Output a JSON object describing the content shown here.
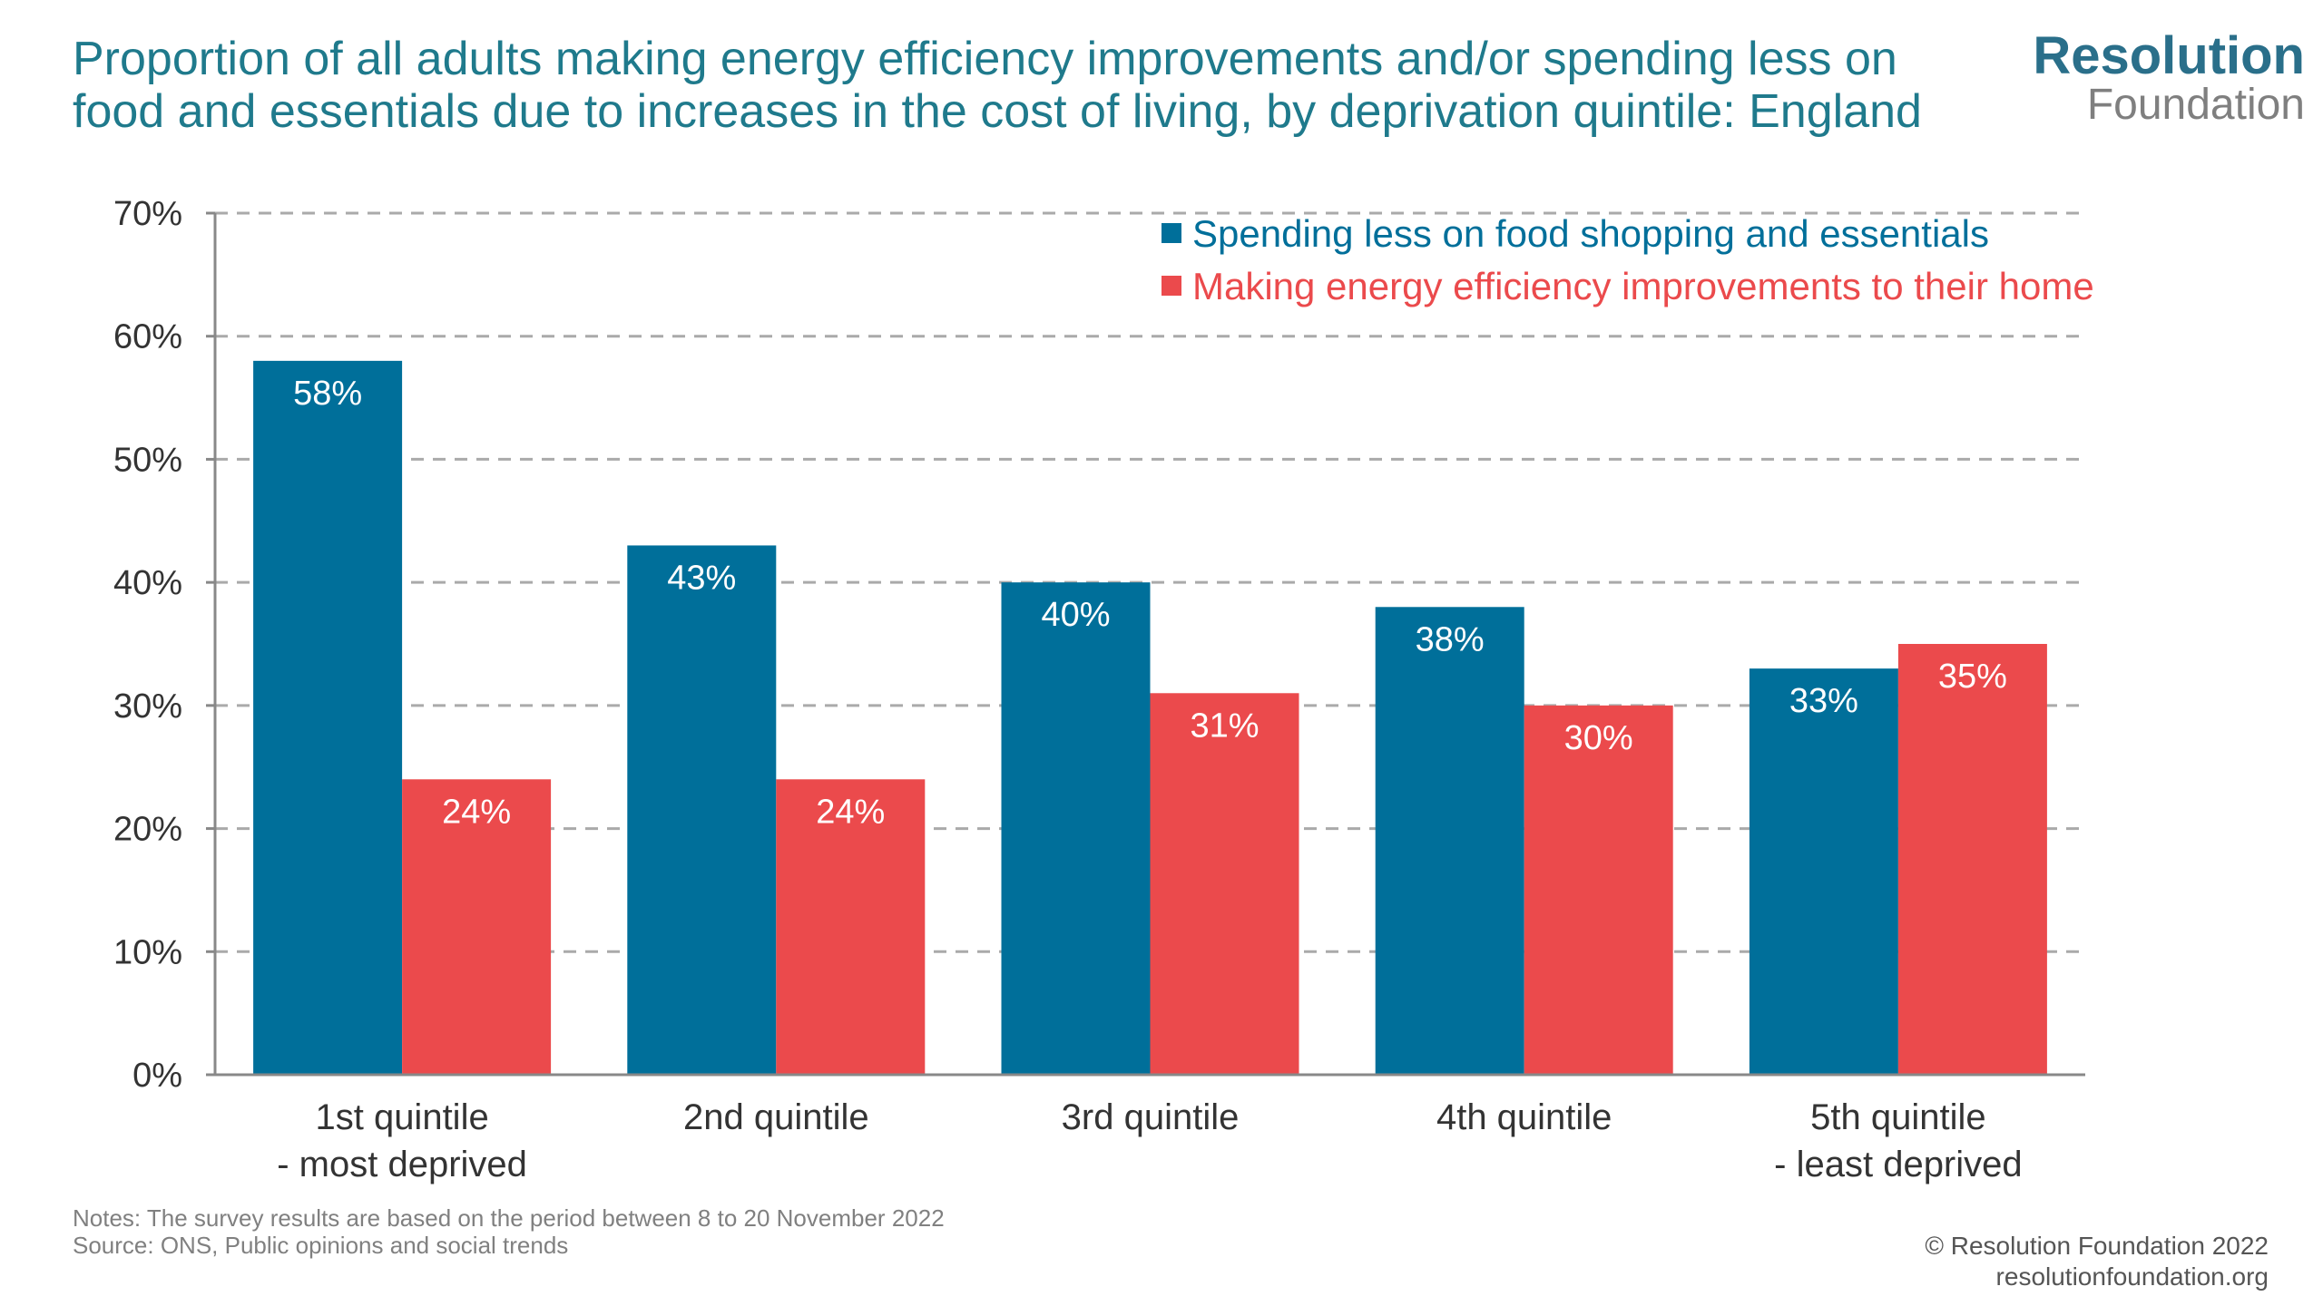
{
  "title_lines": [
    "Proportion of all adults making energy efficiency improvements and/or spending less on",
    "food and essentials due to increases in the cost of living, by deprivation quintile: England"
  ],
  "logo": {
    "main": "Resolution",
    "sub": "Foundation"
  },
  "notes": "Notes: The survey results are based on the period between 8 to 20 November 2022",
  "source": "Source: ONS, Public opinions and social trends",
  "copyright": "© Resolution Foundation 2022",
  "website": "resolutionfoundation.org",
  "colors": {
    "title": "#1f7a8c",
    "series1": "#006f9a",
    "series2": "#eb4a4c",
    "grid": "#aaaaaa",
    "axis": "#888888"
  },
  "chart_data": {
    "type": "bar",
    "categories": [
      [
        "1st quintile",
        "- most deprived"
      ],
      [
        "2nd quintile"
      ],
      [
        "3rd quintile"
      ],
      [
        "4th quintile"
      ],
      [
        "5th quintile",
        "- least deprived"
      ]
    ],
    "series": [
      {
        "name": "Spending less on food shopping and essentials",
        "values": [
          58,
          43,
          40,
          38,
          33
        ],
        "labels": [
          "58%",
          "43%",
          "40%",
          "38%",
          "33%"
        ],
        "color": "#006f9a"
      },
      {
        "name": "Making energy efficiency improvements to their home",
        "values": [
          24,
          24,
          31,
          30,
          35
        ],
        "labels": [
          "24%",
          "24%",
          "31%",
          "30%",
          "35%"
        ],
        "color": "#eb4a4c"
      }
    ],
    "ylim": [
      0,
      70
    ],
    "yticks": [
      {
        "value": 0,
        "label": "0%"
      },
      {
        "value": 10,
        "label": "10%"
      },
      {
        "value": 20,
        "label": "20%"
      },
      {
        "value": 30,
        "label": "30%"
      },
      {
        "value": 40,
        "label": "40%"
      },
      {
        "value": 50,
        "label": "50%"
      },
      {
        "value": 60,
        "label": "60%"
      },
      {
        "value": 70,
        "label": "70%"
      }
    ],
    "grid": "dashed horizontal",
    "legend_position": "top-right"
  }
}
